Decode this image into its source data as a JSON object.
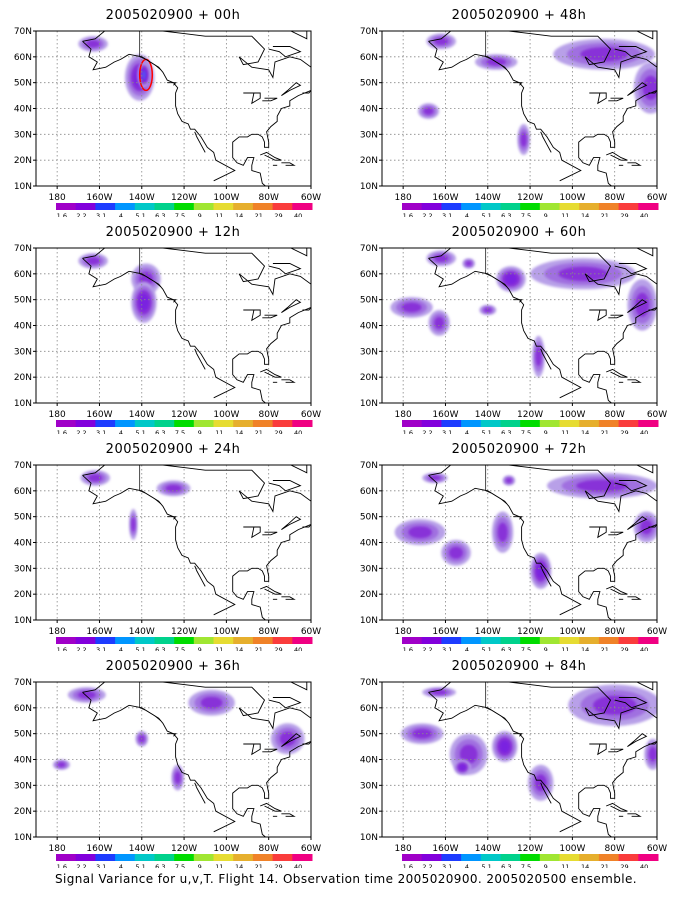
{
  "figure": {
    "caption": "Signal Variance for u,v,T. Flight 14. Observation time 2005020900. 2005020500 ensemble."
  },
  "map": {
    "lat_labels": [
      "70N",
      "60N",
      "50N",
      "40N",
      "30N",
      "20N",
      "10N"
    ],
    "lon_labels": [
      "180",
      "160W",
      "140W",
      "120W",
      "100W",
      "80W",
      "60W"
    ]
  },
  "colorbar": {
    "levels": [
      "1.6",
      "2.2",
      "3.1",
      "4",
      "5.1",
      "6.3",
      "7.5",
      "9",
      "11",
      "14",
      "21",
      "29",
      "40"
    ],
    "colors": [
      "#a000c8",
      "#8200dc",
      "#1e3cff",
      "#0096ff",
      "#00c8c8",
      "#00d28c",
      "#00dc00",
      "#a0e632",
      "#e6dc32",
      "#e6af2d",
      "#f08228",
      "#fa3c3c",
      "#f00082"
    ]
  },
  "chart_data": [
    {
      "type": "heatmap",
      "title": "2005020900 + 00h",
      "blobs": [
        {
          "lon": -163,
          "lat": 65,
          "rx": 7,
          "ry": 3,
          "level": 2
        },
        {
          "lon": -141,
          "lat": 52,
          "rx": 7,
          "ry": 9,
          "level": 3
        },
        {
          "lon": -139,
          "lat": 53,
          "rx": 3,
          "ry": 5,
          "level": 4
        }
      ],
      "outline": {
        "lon": -138,
        "lat": 53,
        "rx": 3,
        "ry": 6,
        "color": "#ff0000"
      }
    },
    {
      "type": "heatmap",
      "title": "2005020900 + 48h",
      "blobs": [
        {
          "lon": -162,
          "lat": 66,
          "rx": 7,
          "ry": 3,
          "level": 2
        },
        {
          "lon": -136,
          "lat": 58,
          "rx": 10,
          "ry": 3,
          "level": 2
        },
        {
          "lon": -168,
          "lat": 39,
          "rx": 5,
          "ry": 3,
          "level": 2
        },
        {
          "lon": -123,
          "lat": 28,
          "rx": 3,
          "ry": 6,
          "level": 2
        },
        {
          "lon": -85,
          "lat": 61,
          "rx": 24,
          "ry": 6,
          "level": 2
        },
        {
          "lon": -63,
          "lat": 48,
          "rx": 8,
          "ry": 10,
          "level": 2
        }
      ]
    },
    {
      "type": "heatmap",
      "title": "2005020900 + 12h",
      "blobs": [
        {
          "lon": -163,
          "lat": 65,
          "rx": 7,
          "ry": 3,
          "level": 2
        },
        {
          "lon": -138,
          "lat": 58,
          "rx": 7,
          "ry": 6,
          "level": 2
        },
        {
          "lon": -139,
          "lat": 49,
          "rx": 6,
          "ry": 8,
          "level": 3
        }
      ]
    },
    {
      "type": "heatmap",
      "title": "2005020900 + 60h",
      "blobs": [
        {
          "lon": -162,
          "lat": 66,
          "rx": 7,
          "ry": 3,
          "level": 2
        },
        {
          "lon": -149,
          "lat": 64,
          "rx": 3,
          "ry": 2,
          "level": 2
        },
        {
          "lon": -176,
          "lat": 47,
          "rx": 10,
          "ry": 4,
          "level": 2
        },
        {
          "lon": -163,
          "lat": 41,
          "rx": 5,
          "ry": 5,
          "level": 2
        },
        {
          "lon": -140,
          "lat": 46,
          "rx": 4,
          "ry": 2,
          "level": 2
        },
        {
          "lon": -129,
          "lat": 58,
          "rx": 7,
          "ry": 5,
          "level": 3
        },
        {
          "lon": -95,
          "lat": 60,
          "rx": 25,
          "ry": 6,
          "level": 2
        },
        {
          "lon": -67,
          "lat": 48,
          "rx": 7,
          "ry": 10,
          "level": 2
        },
        {
          "lon": -116,
          "lat": 28,
          "rx": 3,
          "ry": 8,
          "level": 2
        }
      ]
    },
    {
      "type": "heatmap",
      "title": "2005020900 + 24h",
      "blobs": [
        {
          "lon": -162,
          "lat": 65,
          "rx": 7,
          "ry": 3,
          "level": 2
        },
        {
          "lon": -125,
          "lat": 61,
          "rx": 8,
          "ry": 3,
          "level": 2
        },
        {
          "lon": -144,
          "lat": 47,
          "rx": 2,
          "ry": 6,
          "level": 2
        }
      ]
    },
    {
      "type": "heatmap",
      "title": "2005020900 + 72h",
      "blobs": [
        {
          "lon": -165,
          "lat": 65,
          "rx": 6,
          "ry": 2,
          "level": 2
        },
        {
          "lon": -130,
          "lat": 64,
          "rx": 3,
          "ry": 2,
          "level": 2
        },
        {
          "lon": -172,
          "lat": 44,
          "rx": 12,
          "ry": 5,
          "level": 2
        },
        {
          "lon": -155,
          "lat": 36,
          "rx": 7,
          "ry": 5,
          "level": 2
        },
        {
          "lon": -133,
          "lat": 44,
          "rx": 5,
          "ry": 8,
          "level": 2
        },
        {
          "lon": -115,
          "lat": 29,
          "rx": 5,
          "ry": 7,
          "level": 3
        },
        {
          "lon": -86,
          "lat": 62,
          "rx": 26,
          "ry": 5,
          "level": 2
        },
        {
          "lon": -65,
          "lat": 46,
          "rx": 6,
          "ry": 6,
          "level": 2
        }
      ]
    },
    {
      "type": "heatmap",
      "title": "2005020900 + 36h",
      "blobs": [
        {
          "lon": -166,
          "lat": 65,
          "rx": 9,
          "ry": 3,
          "level": 2
        },
        {
          "lon": -140,
          "lat": 48,
          "rx": 3,
          "ry": 3,
          "level": 2
        },
        {
          "lon": -178,
          "lat": 38,
          "rx": 4,
          "ry": 2,
          "level": 2
        },
        {
          "lon": -123,
          "lat": 33,
          "rx": 3,
          "ry": 5,
          "level": 2
        },
        {
          "lon": -107,
          "lat": 62,
          "rx": 11,
          "ry": 5,
          "level": 2
        },
        {
          "lon": -71,
          "lat": 48,
          "rx": 8,
          "ry": 6,
          "level": 2
        }
      ]
    },
    {
      "type": "heatmap",
      "title": "2005020900 + 84h",
      "blobs": [
        {
          "lon": -163,
          "lat": 66,
          "rx": 8,
          "ry": 2,
          "level": 2
        },
        {
          "lon": -171,
          "lat": 50,
          "rx": 10,
          "ry": 4,
          "level": 2
        },
        {
          "lon": -149,
          "lat": 42,
          "rx": 9,
          "ry": 8,
          "level": 2
        },
        {
          "lon": -152,
          "lat": 37,
          "rx": 4,
          "ry": 3,
          "level": 3
        },
        {
          "lon": -132,
          "lat": 45,
          "rx": 6,
          "ry": 6,
          "level": 3
        },
        {
          "lon": -115,
          "lat": 31,
          "rx": 6,
          "ry": 7,
          "level": 2
        },
        {
          "lon": -80,
          "lat": 61,
          "rx": 22,
          "ry": 8,
          "level": 2
        },
        {
          "lon": -62,
          "lat": 42,
          "rx": 4,
          "ry": 6,
          "level": 2
        }
      ]
    }
  ]
}
